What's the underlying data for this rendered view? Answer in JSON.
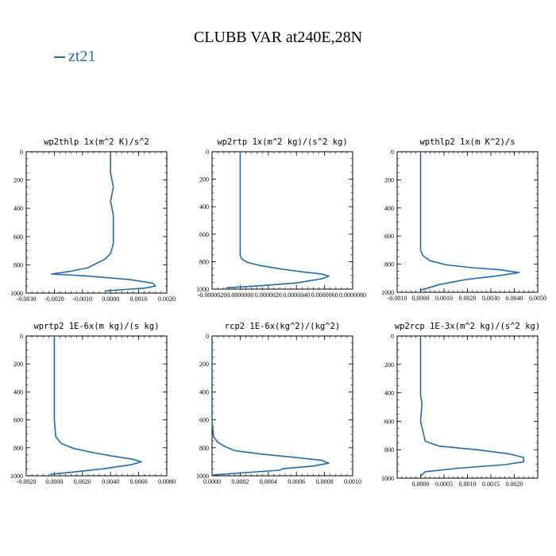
{
  "title": "CLUBB VAR at240E,28N",
  "legend": {
    "series": "zt21",
    "color": "#1f6bb0"
  },
  "chart_data": [
    {
      "type": "line",
      "title": "wp2thlp  1x(m^2 K)/s^2",
      "xlim": [
        -0.003,
        0.002
      ],
      "ylim": [
        1000,
        0
      ],
      "xticks": [
        -0.003,
        -0.002,
        -0.001,
        0.0,
        0.001,
        0.002
      ],
      "xtick_labels": [
        "-0.0030",
        "-0.0020",
        "-0.0010",
        "0.0000",
        "0.0010",
        "0.0020"
      ],
      "yticks": [
        0,
        200,
        400,
        600,
        800,
        1000
      ],
      "ytick_labels": [
        "0",
        "200",
        "400",
        "600",
        "800",
        "1000"
      ],
      "series": [
        {
          "x": [
            0.0,
            0.0,
            0.0001,
            0.0,
            0.0001,
            0.0001,
            0.0001,
            0.0,
            -0.0002,
            -0.0005,
            -0.0008,
            -0.0014,
            -0.0021,
            -0.0008,
            0.0007,
            0.0015,
            0.0016,
            0.0012,
            0.0005,
            -0.0002
          ],
          "y": [
            0,
            150,
            250,
            350,
            450,
            550,
            650,
            720,
            760,
            790,
            820,
            845,
            865,
            880,
            905,
            930,
            950,
            965,
            975,
            985
          ]
        }
      ]
    },
    {
      "type": "line",
      "title": "wp2rtp  1x(m^2 kg)/(s^2 kg)",
      "xlim": [
        -2e-06,
        8e-06
      ],
      "ylim": [
        1000,
        0
      ],
      "xticks": [
        -2e-06,
        0.0,
        2e-06,
        4e-06,
        6e-06,
        8e-06
      ],
      "xtick_labels": [
        "-0.0000020",
        "0.0000000",
        "0.0000020",
        "0.0000040",
        "0.0000060",
        "0.0000080"
      ],
      "yticks": [
        0,
        200,
        400,
        600,
        800,
        1000
      ],
      "ytick_labels": [
        "0",
        "200",
        "400",
        "600",
        "800",
        "1000"
      ],
      "series": [
        {
          "x": [
            0.0,
            0.0,
            0.0,
            0.0,
            0.0,
            0.0,
            0.0,
            1e-07,
            5e-07,
            1.5e-06,
            3e-06,
            4.5e-06,
            5.8e-06,
            6.3e-06,
            5.8e-06,
            4e-06,
            1.5e-06,
            -1e-06
          ],
          "y": [
            0,
            150,
            300,
            450,
            600,
            700,
            750,
            780,
            805,
            830,
            855,
            875,
            890,
            905,
            925,
            955,
            975,
            990
          ]
        }
      ]
    },
    {
      "type": "line",
      "title": "wpthlp2  1x(m K^2)/s",
      "xlim": [
        -0.001,
        0.005
      ],
      "ylim": [
        1000,
        0
      ],
      "xticks": [
        -0.001,
        0.0,
        0.001,
        0.002,
        0.003,
        0.004,
        0.005
      ],
      "xtick_labels": [
        "-0.0010",
        "0.0000",
        "0.0010",
        "0.0020",
        "0.0030",
        "0.0040",
        "0.0050"
      ],
      "yticks": [
        0,
        200,
        400,
        600,
        800,
        1000
      ],
      "ytick_labels": [
        "0",
        "200",
        "400",
        "600",
        "800",
        "1000"
      ],
      "series": [
        {
          "x": [
            0.0,
            0.0,
            0.0,
            0.0,
            0.0,
            0.0,
            0.0001,
            0.0004,
            0.0011,
            0.0022,
            0.0034,
            0.0042,
            0.0032,
            0.0019,
            0.0008,
            0.0
          ],
          "y": [
            0,
            150,
            300,
            450,
            600,
            700,
            740,
            775,
            805,
            825,
            840,
            860,
            885,
            910,
            945,
            985
          ]
        }
      ]
    },
    {
      "type": "line",
      "title": "wprtp2  1E-6x(m kg)/(s kg)",
      "xlim": [
        -0.002,
        0.008
      ],
      "ylim": [
        1000,
        0
      ],
      "xticks": [
        -0.002,
        0.0,
        0.002,
        0.004,
        0.006,
        0.008
      ],
      "xtick_labels": [
        "-0.0020",
        "0.0000",
        "0.0020",
        "0.0040",
        "0.0060",
        "0.0080"
      ],
      "yticks": [
        0,
        200,
        400,
        600,
        800,
        1000
      ],
      "ytick_labels": [
        "0",
        "200",
        "400",
        "600",
        "800",
        "1000"
      ],
      "series": [
        {
          "x": [
            0.0,
            0.0,
            0.0,
            0.0,
            0.0,
            0.0001,
            0.0005,
            0.0014,
            0.0028,
            0.0042,
            0.0055,
            0.0062,
            0.0055,
            0.0035,
            0.0012,
            -0.0003
          ],
          "y": [
            0,
            150,
            300,
            450,
            600,
            720,
            770,
            805,
            835,
            860,
            880,
            900,
            920,
            950,
            975,
            990
          ]
        }
      ]
    },
    {
      "type": "line",
      "title": "rcp2  1E-6x(kg^2)/(kg^2)",
      "xlim": [
        0.0,
        0.001
      ],
      "ylim": [
        1000,
        0
      ],
      "xticks": [
        0.0,
        0.0002,
        0.0004,
        0.0006,
        0.0008,
        0.001
      ],
      "xtick_labels": [
        "0.0000",
        "0.0002",
        "0.0004",
        "0.0006",
        "0.0008",
        "0.0010"
      ],
      "yticks": [
        0,
        200,
        400,
        600,
        800,
        1000
      ],
      "ytick_labels": [
        "0",
        "200",
        "400",
        "600",
        "800",
        "1000"
      ],
      "series": [
        {
          "x": [
            0.0,
            0.0,
            0.0,
            0.0,
            0.0,
            1e-05,
            4e-05,
            9e-05,
            0.00016,
            0.00035,
            0.0006,
            0.00078,
            0.00083,
            0.00072,
            0.0005,
            0.00048,
            0.0002,
            0.0
          ],
          "y": [
            0,
            150,
            300,
            450,
            600,
            720,
            760,
            790,
            820,
            845,
            870,
            890,
            910,
            930,
            950,
            960,
            980,
            995
          ]
        }
      ]
    },
    {
      "type": "line",
      "title": "wp2rcp  1E-3x(m^2 kg)/(s^2 kg)",
      "xlim": [
        -0.0005,
        0.0025
      ],
      "ylim": [
        1000,
        0
      ],
      "xticks": [
        0.0,
        0.0005,
        0.001,
        0.0015,
        0.002
      ],
      "xtick_labels": [
        "0.0000",
        "0.0005",
        "0.0010",
        "0.0015",
        "0.0020"
      ],
      "yticks": [
        0,
        200,
        400,
        600,
        800,
        1000
      ],
      "ytick_labels": [
        "0",
        "200",
        "400",
        "600",
        "800",
        "1000"
      ],
      "series": [
        {
          "x": [
            0.0,
            0.0,
            0.0,
            0.0,
            2e-05,
            3e-05,
            0.0,
            0.0001,
            0.0004,
            0.0012,
            0.0019,
            0.0022,
            0.0022,
            0.0018,
            0.0008,
            0.0001,
            0.0
          ],
          "y": [
            0,
            150,
            300,
            420,
            450,
            480,
            600,
            740,
            775,
            800,
            830,
            855,
            885,
            905,
            930,
            955,
            985
          ]
        }
      ]
    }
  ]
}
